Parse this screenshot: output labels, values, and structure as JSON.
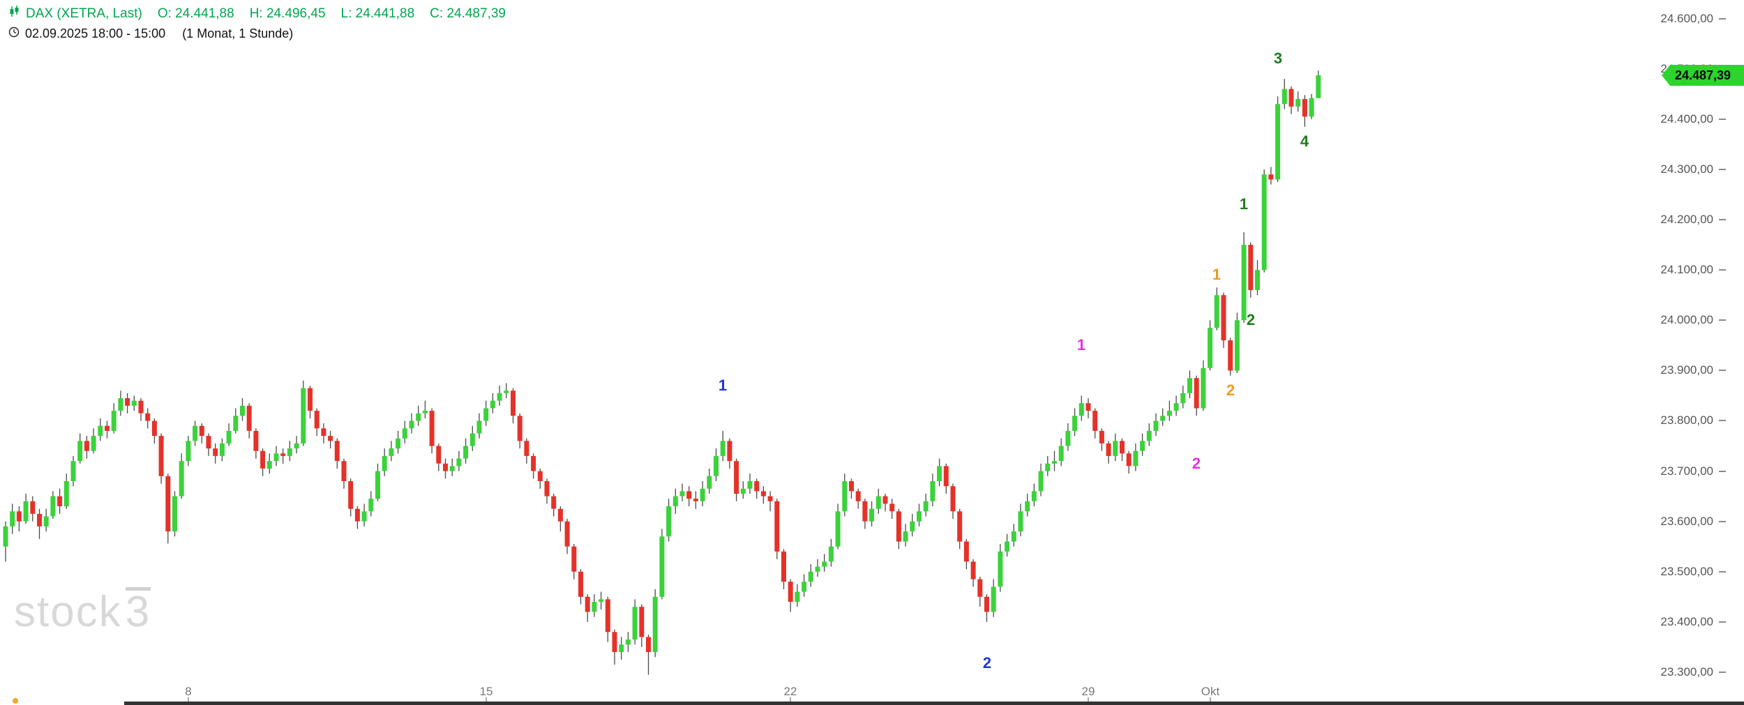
{
  "header": {
    "title": "DAX (XETRA, Last)",
    "open_label": "O: 24.441,88",
    "high_label": "H: 24.496,45",
    "low_label": "L: 24.441,88",
    "close_label": "C: 24.487,39",
    "timestamp": "02.09.2025 18:00 - 15:00",
    "period": "(1 Monat, 1 Stunde)",
    "accent_color": "#00a550"
  },
  "last_price_badge": {
    "text": "24.487,39",
    "background": "#2fd32f"
  },
  "watermark": {
    "text_main": "stock",
    "text_sup": "3"
  },
  "misc": {
    "marker_dot_color": "#f5a623"
  },
  "chart_data": {
    "type": "candlestick",
    "title": "DAX (XETRA, Last)",
    "timeframe": "1 Stunde",
    "range_label": "1 Monat",
    "last_price": 24487.39,
    "last_candle_ohlc": {
      "open": 24441.88,
      "high": 24496.45,
      "low": 24441.88,
      "close": 24487.39
    },
    "y_axis": {
      "min": 23250,
      "max": 24640,
      "grid": false,
      "ticks": [
        {
          "label": "24.600,00",
          "price": 24600
        },
        {
          "label": "24.500,00",
          "price": 24500
        },
        {
          "label": "24.400,00",
          "price": 24400
        },
        {
          "label": "24.300,00",
          "price": 24300
        },
        {
          "label": "24.200,00",
          "price": 24200
        },
        {
          "label": "24.100,00",
          "price": 24100
        },
        {
          "label": "24.000,00",
          "price": 24000
        },
        {
          "label": "23.900,00",
          "price": 23900
        },
        {
          "label": "23.800,00",
          "price": 23800
        },
        {
          "label": "23.700,00",
          "price": 23700
        },
        {
          "label": "23.600,00",
          "price": 23600
        },
        {
          "label": "23.500,00",
          "price": 23500
        },
        {
          "label": "23.400,00",
          "price": 23400
        },
        {
          "label": "23.300,00",
          "price": 23300
        }
      ]
    },
    "x_axis": {
      "labels": [
        {
          "text": "8",
          "candle_index": 27
        },
        {
          "text": "15",
          "candle_index": 71
        },
        {
          "text": "22",
          "candle_index": 116
        },
        {
          "text": "29",
          "candle_index": 160
        },
        {
          "text": "Okt",
          "candle_index": 178
        }
      ]
    },
    "colors": {
      "up": "#3bd23b",
      "down": "#e53229",
      "wick": "#4a4a4a"
    },
    "annotations": [
      {
        "text": "1",
        "color": "#2038cf",
        "candle_index": 106,
        "price": 23870
      },
      {
        "text": "2",
        "color": "#2038cf",
        "candle_index": 145,
        "price": 23318
      },
      {
        "text": "1",
        "color": "#e331e3",
        "candle_index": 159,
        "price": 23950
      },
      {
        "text": "2",
        "color": "#e331e3",
        "candle_index": 176,
        "price": 23715
      },
      {
        "text": "1",
        "color": "#f09a1a",
        "candle_index": 179,
        "price": 24090
      },
      {
        "text": "2",
        "color": "#f09a1a",
        "candle_index": 181,
        "price": 23860
      },
      {
        "text": "1",
        "color": "#1e7d1e",
        "candle_index": 183,
        "price": 24230
      },
      {
        "text": "2",
        "color": "#1e7d1e",
        "candle_index": 184,
        "price": 24000
      },
      {
        "text": "3",
        "color": "#1e7d1e",
        "candle_index": 188,
        "price": 24520
      },
      {
        "text": "4",
        "color": "#1e7d1e",
        "candle_index": 192,
        "price": 24355
      }
    ],
    "candles": [
      [
        23550,
        23600,
        23520,
        23590
      ],
      [
        23590,
        23635,
        23575,
        23620
      ],
      [
        23620,
        23630,
        23580,
        23600
      ],
      [
        23600,
        23655,
        23595,
        23640
      ],
      [
        23640,
        23650,
        23600,
        23615
      ],
      [
        23615,
        23625,
        23565,
        23590
      ],
      [
        23590,
        23625,
        23580,
        23610
      ],
      [
        23610,
        23660,
        23605,
        23650
      ],
      [
        23650,
        23665,
        23615,
        23630
      ],
      [
        23630,
        23695,
        23625,
        23680
      ],
      [
        23680,
        23730,
        23670,
        23720
      ],
      [
        23720,
        23775,
        23715,
        23760
      ],
      [
        23760,
        23770,
        23725,
        23740
      ],
      [
        23740,
        23785,
        23735,
        23770
      ],
      [
        23770,
        23805,
        23760,
        23790
      ],
      [
        23790,
        23800,
        23765,
        23780
      ],
      [
        23780,
        23835,
        23775,
        23820
      ],
      [
        23820,
        23860,
        23810,
        23845
      ],
      [
        23845,
        23855,
        23815,
        23830
      ],
      [
        23830,
        23850,
        23820,
        23840
      ],
      [
        23840,
        23845,
        23800,
        23815
      ],
      [
        23815,
        23825,
        23785,
        23800
      ],
      [
        23800,
        23805,
        23755,
        23770
      ],
      [
        23770,
        23775,
        23675,
        23690
      ],
      [
        23690,
        23695,
        23556,
        23580
      ],
      [
        23580,
        23660,
        23570,
        23650
      ],
      [
        23650,
        23735,
        23645,
        23720
      ],
      [
        23720,
        23770,
        23710,
        23760
      ],
      [
        23760,
        23800,
        23750,
        23790
      ],
      [
        23790,
        23795,
        23755,
        23770
      ],
      [
        23770,
        23775,
        23730,
        23745
      ],
      [
        23745,
        23755,
        23715,
        23730
      ],
      [
        23730,
        23765,
        23720,
        23755
      ],
      [
        23755,
        23795,
        23750,
        23780
      ],
      [
        23780,
        23825,
        23775,
        23810
      ],
      [
        23810,
        23845,
        23800,
        23830
      ],
      [
        23830,
        23835,
        23765,
        23780
      ],
      [
        23780,
        23785,
        23725,
        23740
      ],
      [
        23740,
        23745,
        23690,
        23705
      ],
      [
        23705,
        23735,
        23695,
        23720
      ],
      [
        23720,
        23750,
        23710,
        23735
      ],
      [
        23735,
        23745,
        23715,
        23730
      ],
      [
        23730,
        23760,
        23720,
        23745
      ],
      [
        23745,
        23770,
        23735,
        23755
      ],
      [
        23755,
        23880,
        23750,
        23865
      ],
      [
        23865,
        23870,
        23805,
        23820
      ],
      [
        23820,
        23825,
        23770,
        23785
      ],
      [
        23785,
        23795,
        23755,
        23770
      ],
      [
        23770,
        23780,
        23745,
        23760
      ],
      [
        23760,
        23765,
        23705,
        23720
      ],
      [
        23720,
        23725,
        23665,
        23680
      ],
      [
        23680,
        23685,
        23610,
        23625
      ],
      [
        23625,
        23630,
        23585,
        23600
      ],
      [
        23600,
        23635,
        23590,
        23620
      ],
      [
        23620,
        23660,
        23610,
        23645
      ],
      [
        23645,
        23715,
        23640,
        23700
      ],
      [
        23700,
        23745,
        23690,
        23730
      ],
      [
        23730,
        23760,
        23720,
        23745
      ],
      [
        23745,
        23780,
        23735,
        23765
      ],
      [
        23765,
        23800,
        23755,
        23785
      ],
      [
        23785,
        23815,
        23775,
        23800
      ],
      [
        23800,
        23830,
        23790,
        23815
      ],
      [
        23815,
        23840,
        23805,
        23820
      ],
      [
        23820,
        23825,
        23735,
        23750
      ],
      [
        23750,
        23755,
        23700,
        23715
      ],
      [
        23715,
        23725,
        23685,
        23700
      ],
      [
        23700,
        23725,
        23690,
        23710
      ],
      [
        23710,
        23740,
        23700,
        23725
      ],
      [
        23725,
        23765,
        23715,
        23750
      ],
      [
        23750,
        23790,
        23740,
        23775
      ],
      [
        23775,
        23815,
        23765,
        23800
      ],
      [
        23800,
        23840,
        23790,
        23825
      ],
      [
        23825,
        23855,
        23815,
        23840
      ],
      [
        23840,
        23870,
        23830,
        23855
      ],
      [
        23855,
        23875,
        23845,
        23860
      ],
      [
        23860,
        23865,
        23795,
        23810
      ],
      [
        23810,
        23815,
        23745,
        23760
      ],
      [
        23760,
        23765,
        23715,
        23730
      ],
      [
        23730,
        23735,
        23685,
        23700
      ],
      [
        23700,
        23705,
        23665,
        23680
      ],
      [
        23680,
        23685,
        23635,
        23650
      ],
      [
        23650,
        23655,
        23610,
        23625
      ],
      [
        23625,
        23630,
        23580,
        23600
      ],
      [
        23600,
        23605,
        23535,
        23550
      ],
      [
        23550,
        23555,
        23485,
        23500
      ],
      [
        23500,
        23505,
        23435,
        23450
      ],
      [
        23450,
        23455,
        23400,
        23420
      ],
      [
        23420,
        23455,
        23410,
        23440
      ],
      [
        23440,
        23460,
        23425,
        23445
      ],
      [
        23445,
        23450,
        23360,
        23380
      ],
      [
        23380,
        23385,
        23315,
        23340
      ],
      [
        23340,
        23370,
        23325,
        23355
      ],
      [
        23355,
        23380,
        23340,
        23365
      ],
      [
        23365,
        23445,
        23355,
        23430
      ],
      [
        23430,
        23435,
        23350,
        23370
      ],
      [
        23370,
        23375,
        23295,
        23340
      ],
      [
        23340,
        23465,
        23330,
        23450
      ],
      [
        23450,
        23585,
        23445,
        23570
      ],
      [
        23570,
        23645,
        23560,
        23630
      ],
      [
        23630,
        23665,
        23615,
        23650
      ],
      [
        23650,
        23675,
        23640,
        23660
      ],
      [
        23660,
        23670,
        23630,
        23645
      ],
      [
        23645,
        23660,
        23625,
        23640
      ],
      [
        23640,
        23680,
        23630,
        23665
      ],
      [
        23665,
        23705,
        23655,
        23690
      ],
      [
        23690,
        23745,
        23680,
        23730
      ],
      [
        23730,
        23780,
        23720,
        23760
      ],
      [
        23760,
        23765,
        23705,
        23720
      ],
      [
        23720,
        23725,
        23640,
        23655
      ],
      [
        23655,
        23680,
        23645,
        23665
      ],
      [
        23665,
        23695,
        23655,
        23680
      ],
      [
        23680,
        23685,
        23645,
        23660
      ],
      [
        23660,
        23670,
        23635,
        23650
      ],
      [
        23650,
        23660,
        23620,
        23640
      ],
      [
        23640,
        23645,
        23525,
        23540
      ],
      [
        23540,
        23545,
        23465,
        23480
      ],
      [
        23480,
        23485,
        23420,
        23440
      ],
      [
        23440,
        23475,
        23430,
        23460
      ],
      [
        23460,
        23495,
        23450,
        23480
      ],
      [
        23480,
        23515,
        23470,
        23500
      ],
      [
        23500,
        23525,
        23490,
        23510
      ],
      [
        23510,
        23535,
        23500,
        23520
      ],
      [
        23520,
        23565,
        23510,
        23550
      ],
      [
        23550,
        23635,
        23545,
        23620
      ],
      [
        23620,
        23695,
        23610,
        23680
      ],
      [
        23680,
        23685,
        23645,
        23660
      ],
      [
        23660,
        23665,
        23625,
        23640
      ],
      [
        23640,
        23645,
        23585,
        23600
      ],
      [
        23600,
        23640,
        23590,
        23625
      ],
      [
        23625,
        23665,
        23615,
        23650
      ],
      [
        23650,
        23655,
        23620,
        23635
      ],
      [
        23635,
        23645,
        23605,
        23620
      ],
      [
        23620,
        23625,
        23545,
        23560
      ],
      [
        23560,
        23595,
        23550,
        23580
      ],
      [
        23580,
        23615,
        23570,
        23600
      ],
      [
        23600,
        23635,
        23590,
        23620
      ],
      [
        23620,
        23655,
        23610,
        23640
      ],
      [
        23640,
        23695,
        23630,
        23680
      ],
      [
        23680,
        23725,
        23670,
        23710
      ],
      [
        23710,
        23715,
        23655,
        23670
      ],
      [
        23670,
        23675,
        23605,
        23620
      ],
      [
        23620,
        23625,
        23545,
        23560
      ],
      [
        23560,
        23565,
        23505,
        23520
      ],
      [
        23520,
        23525,
        23470,
        23485
      ],
      [
        23485,
        23490,
        23430,
        23450
      ],
      [
        23450,
        23455,
        23400,
        23420
      ],
      [
        23420,
        23485,
        23410,
        23470
      ],
      [
        23470,
        23555,
        23460,
        23540
      ],
      [
        23540,
        23575,
        23530,
        23560
      ],
      [
        23560,
        23595,
        23550,
        23580
      ],
      [
        23580,
        23635,
        23570,
        23620
      ],
      [
        23620,
        23655,
        23610,
        23640
      ],
      [
        23640,
        23675,
        23630,
        23660
      ],
      [
        23660,
        23715,
        23650,
        23700
      ],
      [
        23700,
        23730,
        23690,
        23715
      ],
      [
        23715,
        23740,
        23700,
        23720
      ],
      [
        23720,
        23765,
        23710,
        23750
      ],
      [
        23750,
        23795,
        23740,
        23780
      ],
      [
        23780,
        23825,
        23770,
        23810
      ],
      [
        23810,
        23850,
        23800,
        23835
      ],
      [
        23835,
        23845,
        23805,
        23820
      ],
      [
        23820,
        23825,
        23765,
        23780
      ],
      [
        23780,
        23785,
        23740,
        23755
      ],
      [
        23755,
        23760,
        23715,
        23730
      ],
      [
        23730,
        23775,
        23720,
        23760
      ],
      [
        23760,
        23765,
        23720,
        23735
      ],
      [
        23735,
        23740,
        23695,
        23710
      ],
      [
        23710,
        23755,
        23700,
        23740
      ],
      [
        23740,
        23775,
        23730,
        23760
      ],
      [
        23760,
        23795,
        23750,
        23780
      ],
      [
        23780,
        23815,
        23770,
        23800
      ],
      [
        23800,
        23825,
        23790,
        23810
      ],
      [
        23810,
        23840,
        23800,
        23820
      ],
      [
        23820,
        23850,
        23810,
        23835
      ],
      [
        23835,
        23870,
        23825,
        23855
      ],
      [
        23855,
        23900,
        23845,
        23885
      ],
      [
        23885,
        23890,
        23810,
        23825
      ],
      [
        23825,
        23920,
        23820,
        23905
      ],
      [
        23905,
        24000,
        23900,
        23985
      ],
      [
        23985,
        24065,
        23980,
        24050
      ],
      [
        24050,
        24055,
        23945,
        23960
      ],
      [
        23960,
        23965,
        23890,
        23900
      ],
      [
        23900,
        24015,
        23895,
        24000
      ],
      [
        24000,
        24175,
        23995,
        24150
      ],
      [
        24150,
        24155,
        24045,
        24060
      ],
      [
        24060,
        24120,
        24050,
        24100
      ],
      [
        24100,
        24300,
        24095,
        24290
      ],
      [
        24290,
        24305,
        24270,
        24280
      ],
      [
        24280,
        24445,
        24275,
        24430
      ],
      [
        24430,
        24480,
        24420,
        24460
      ],
      [
        24460,
        24465,
        24410,
        24425
      ],
      [
        24425,
        24455,
        24415,
        24440
      ],
      [
        24440,
        24448,
        24385,
        24405
      ],
      [
        24405,
        24450,
        24400,
        24442
      ],
      [
        24441.88,
        24496.45,
        24441.88,
        24487.39
      ]
    ]
  }
}
